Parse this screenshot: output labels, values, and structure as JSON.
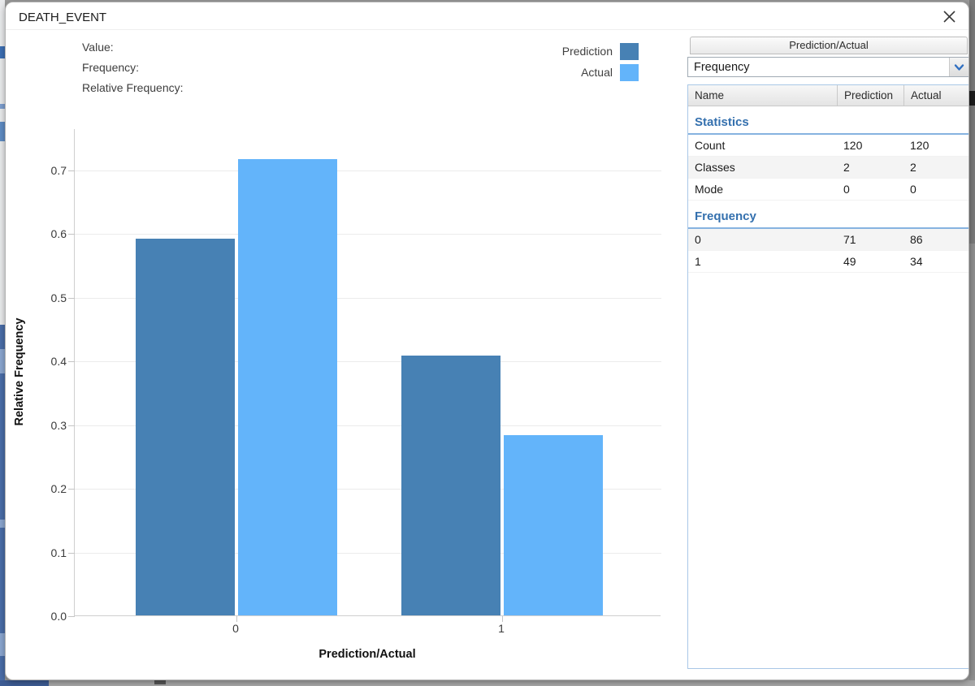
{
  "window": {
    "title": "DEATH_EVENT",
    "close_icon": "x-close"
  },
  "tooltip_readout": {
    "labels": [
      "Value:",
      "Frequency:",
      "Relative Frequency:"
    ]
  },
  "legend": [
    {
      "label": "Prediction",
      "color": "#4781b4"
    },
    {
      "label": "Actual",
      "color": "#63b4fa"
    }
  ],
  "chart_data": {
    "type": "bar",
    "categories": [
      "0",
      "1"
    ],
    "series": [
      {
        "name": "Prediction",
        "color": "#4781b4",
        "values": [
          0.5917,
          0.4083
        ],
        "counts": [
          71,
          49
        ]
      },
      {
        "name": "Actual",
        "color": "#63b4fa",
        "values": [
          0.7167,
          0.2833
        ],
        "counts": [
          86,
          34
        ]
      }
    ],
    "title": "DEATH_EVENT",
    "xlabel": "Prediction/Actual",
    "ylabel": "Relative Frequency",
    "ylim": [
      0,
      0.765
    ],
    "yticks": [
      0.0,
      0.1,
      0.2,
      0.3,
      0.4,
      0.5,
      0.6,
      0.7
    ],
    "grid": true,
    "legend_position": "top-right"
  },
  "panel": {
    "header": "Prediction/Actual",
    "dropdown": {
      "value": "Frequency"
    },
    "table": {
      "columns": [
        "Name",
        "Prediction",
        "Actual"
      ],
      "sections": [
        {
          "title": "Statistics",
          "rows": [
            [
              "Count",
              "120",
              "120"
            ],
            [
              "Classes",
              "2",
              "2"
            ],
            [
              "Mode",
              "0",
              "0"
            ]
          ]
        },
        {
          "title": "Frequency",
          "rows": [
            [
              "0",
              "71",
              "86"
            ],
            [
              "1",
              "49",
              "34"
            ]
          ]
        }
      ]
    }
  },
  "colors": {
    "prediction": "#4781b4",
    "actual": "#63b4fa",
    "section_title": "#3470ae",
    "section_rule": "#86b3e0",
    "table_border": "#a9c7e7"
  }
}
